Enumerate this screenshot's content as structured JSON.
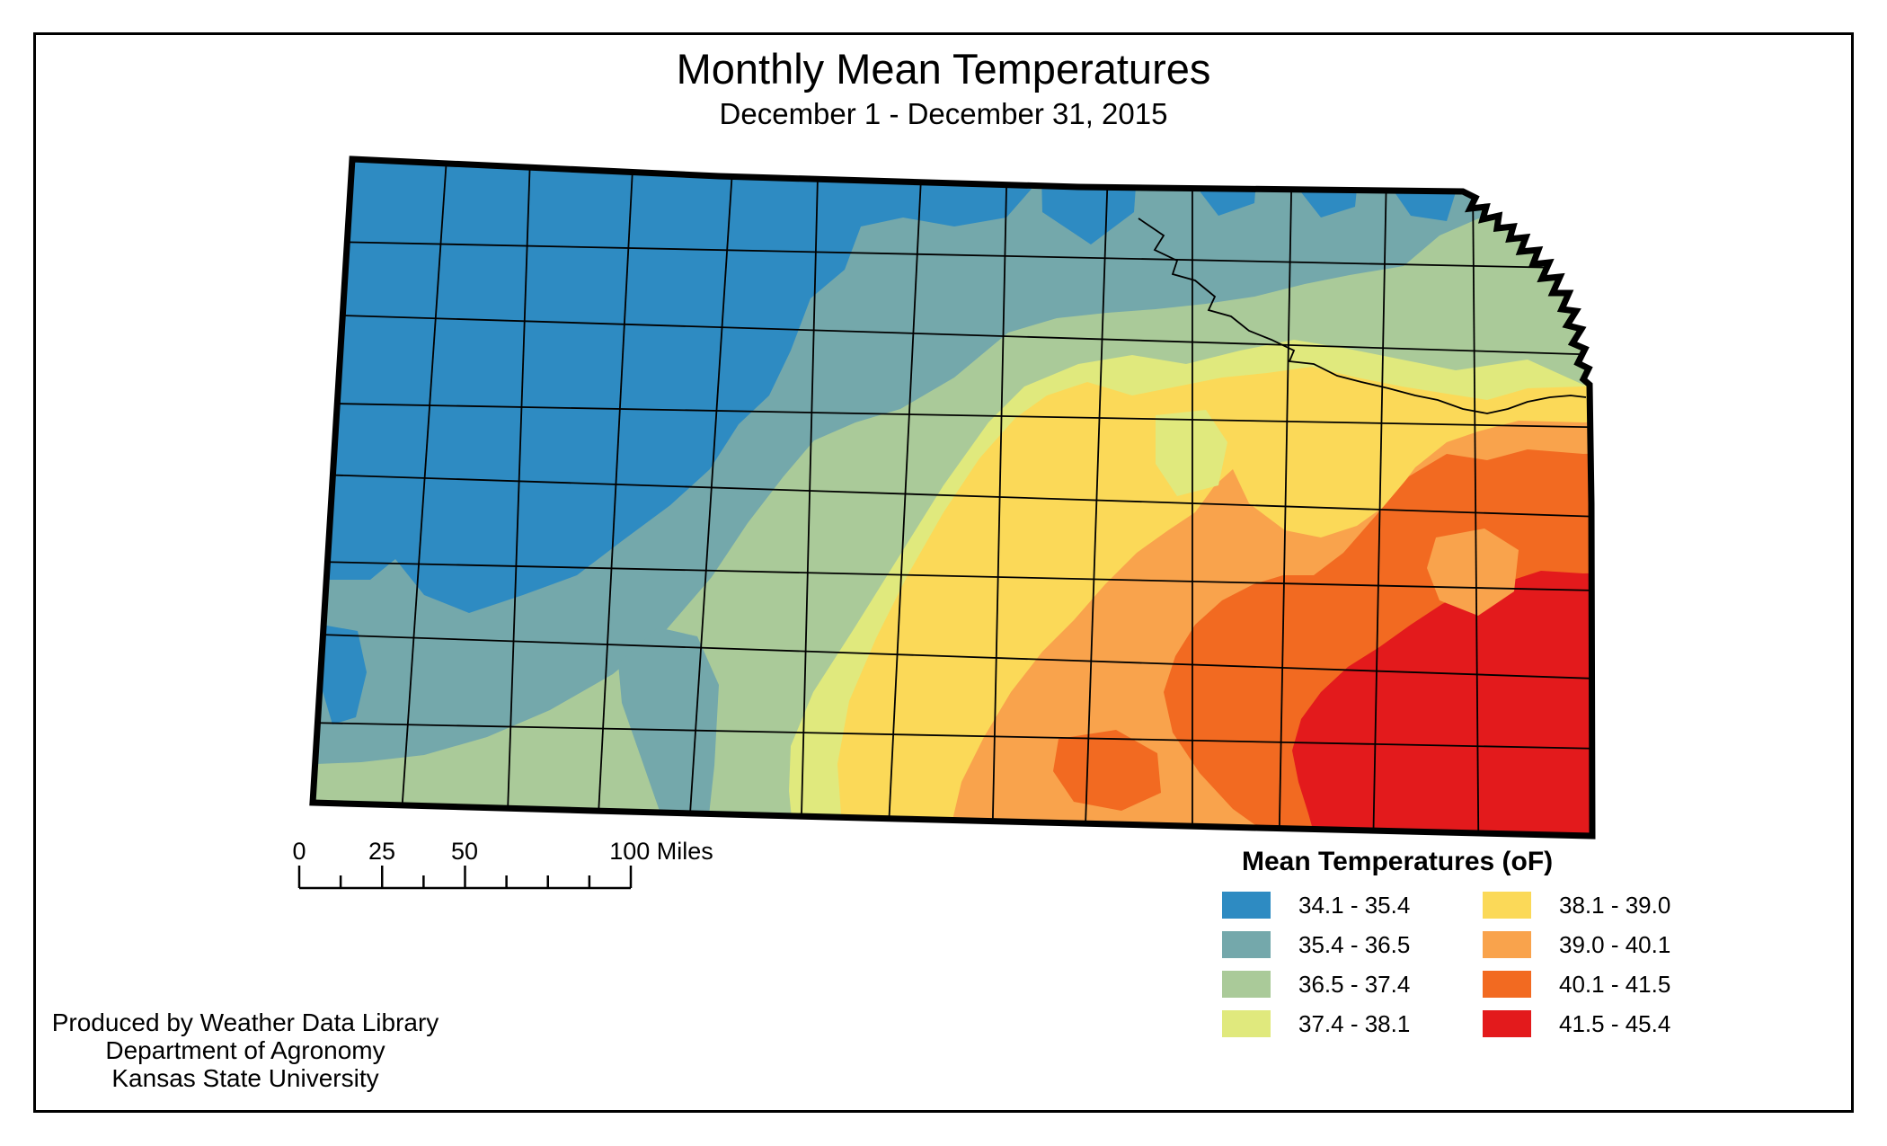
{
  "page": {
    "title": "Monthly Mean Temperatures",
    "subtitle": "December 1 - December 31, 2015"
  },
  "legend": {
    "title": "Mean Temperatures (oF)",
    "items": [
      {
        "range": "34.1 - 35.4",
        "color": "#2E8BC2"
      },
      {
        "range": "35.4 - 36.5",
        "color": "#74A8AB"
      },
      {
        "range": "36.5 - 37.4",
        "color": "#AACA99"
      },
      {
        "range": "37.4 - 38.1",
        "color": "#E0E97D"
      },
      {
        "range": "38.1 - 39.0",
        "color": "#FBD958"
      },
      {
        "range": "39.0 - 40.1",
        "color": "#F9A34C"
      },
      {
        "range": "40.1 - 41.5",
        "color": "#F26A21"
      },
      {
        "range": "41.5 - 45.4",
        "color": "#E31A1C"
      }
    ]
  },
  "scale_bar": {
    "unit": "Miles",
    "max_miles": 100,
    "labels": [
      {
        "text": "0",
        "mile": 0
      },
      {
        "text": "25",
        "mile": 25
      },
      {
        "text": "50",
        "mile": 50
      },
      {
        "text": "100 Miles",
        "mile": 100
      }
    ]
  },
  "credits": {
    "lines": [
      "Produced by Weather Data Library",
      "Department of Agronomy",
      "Kansas State University"
    ]
  }
}
